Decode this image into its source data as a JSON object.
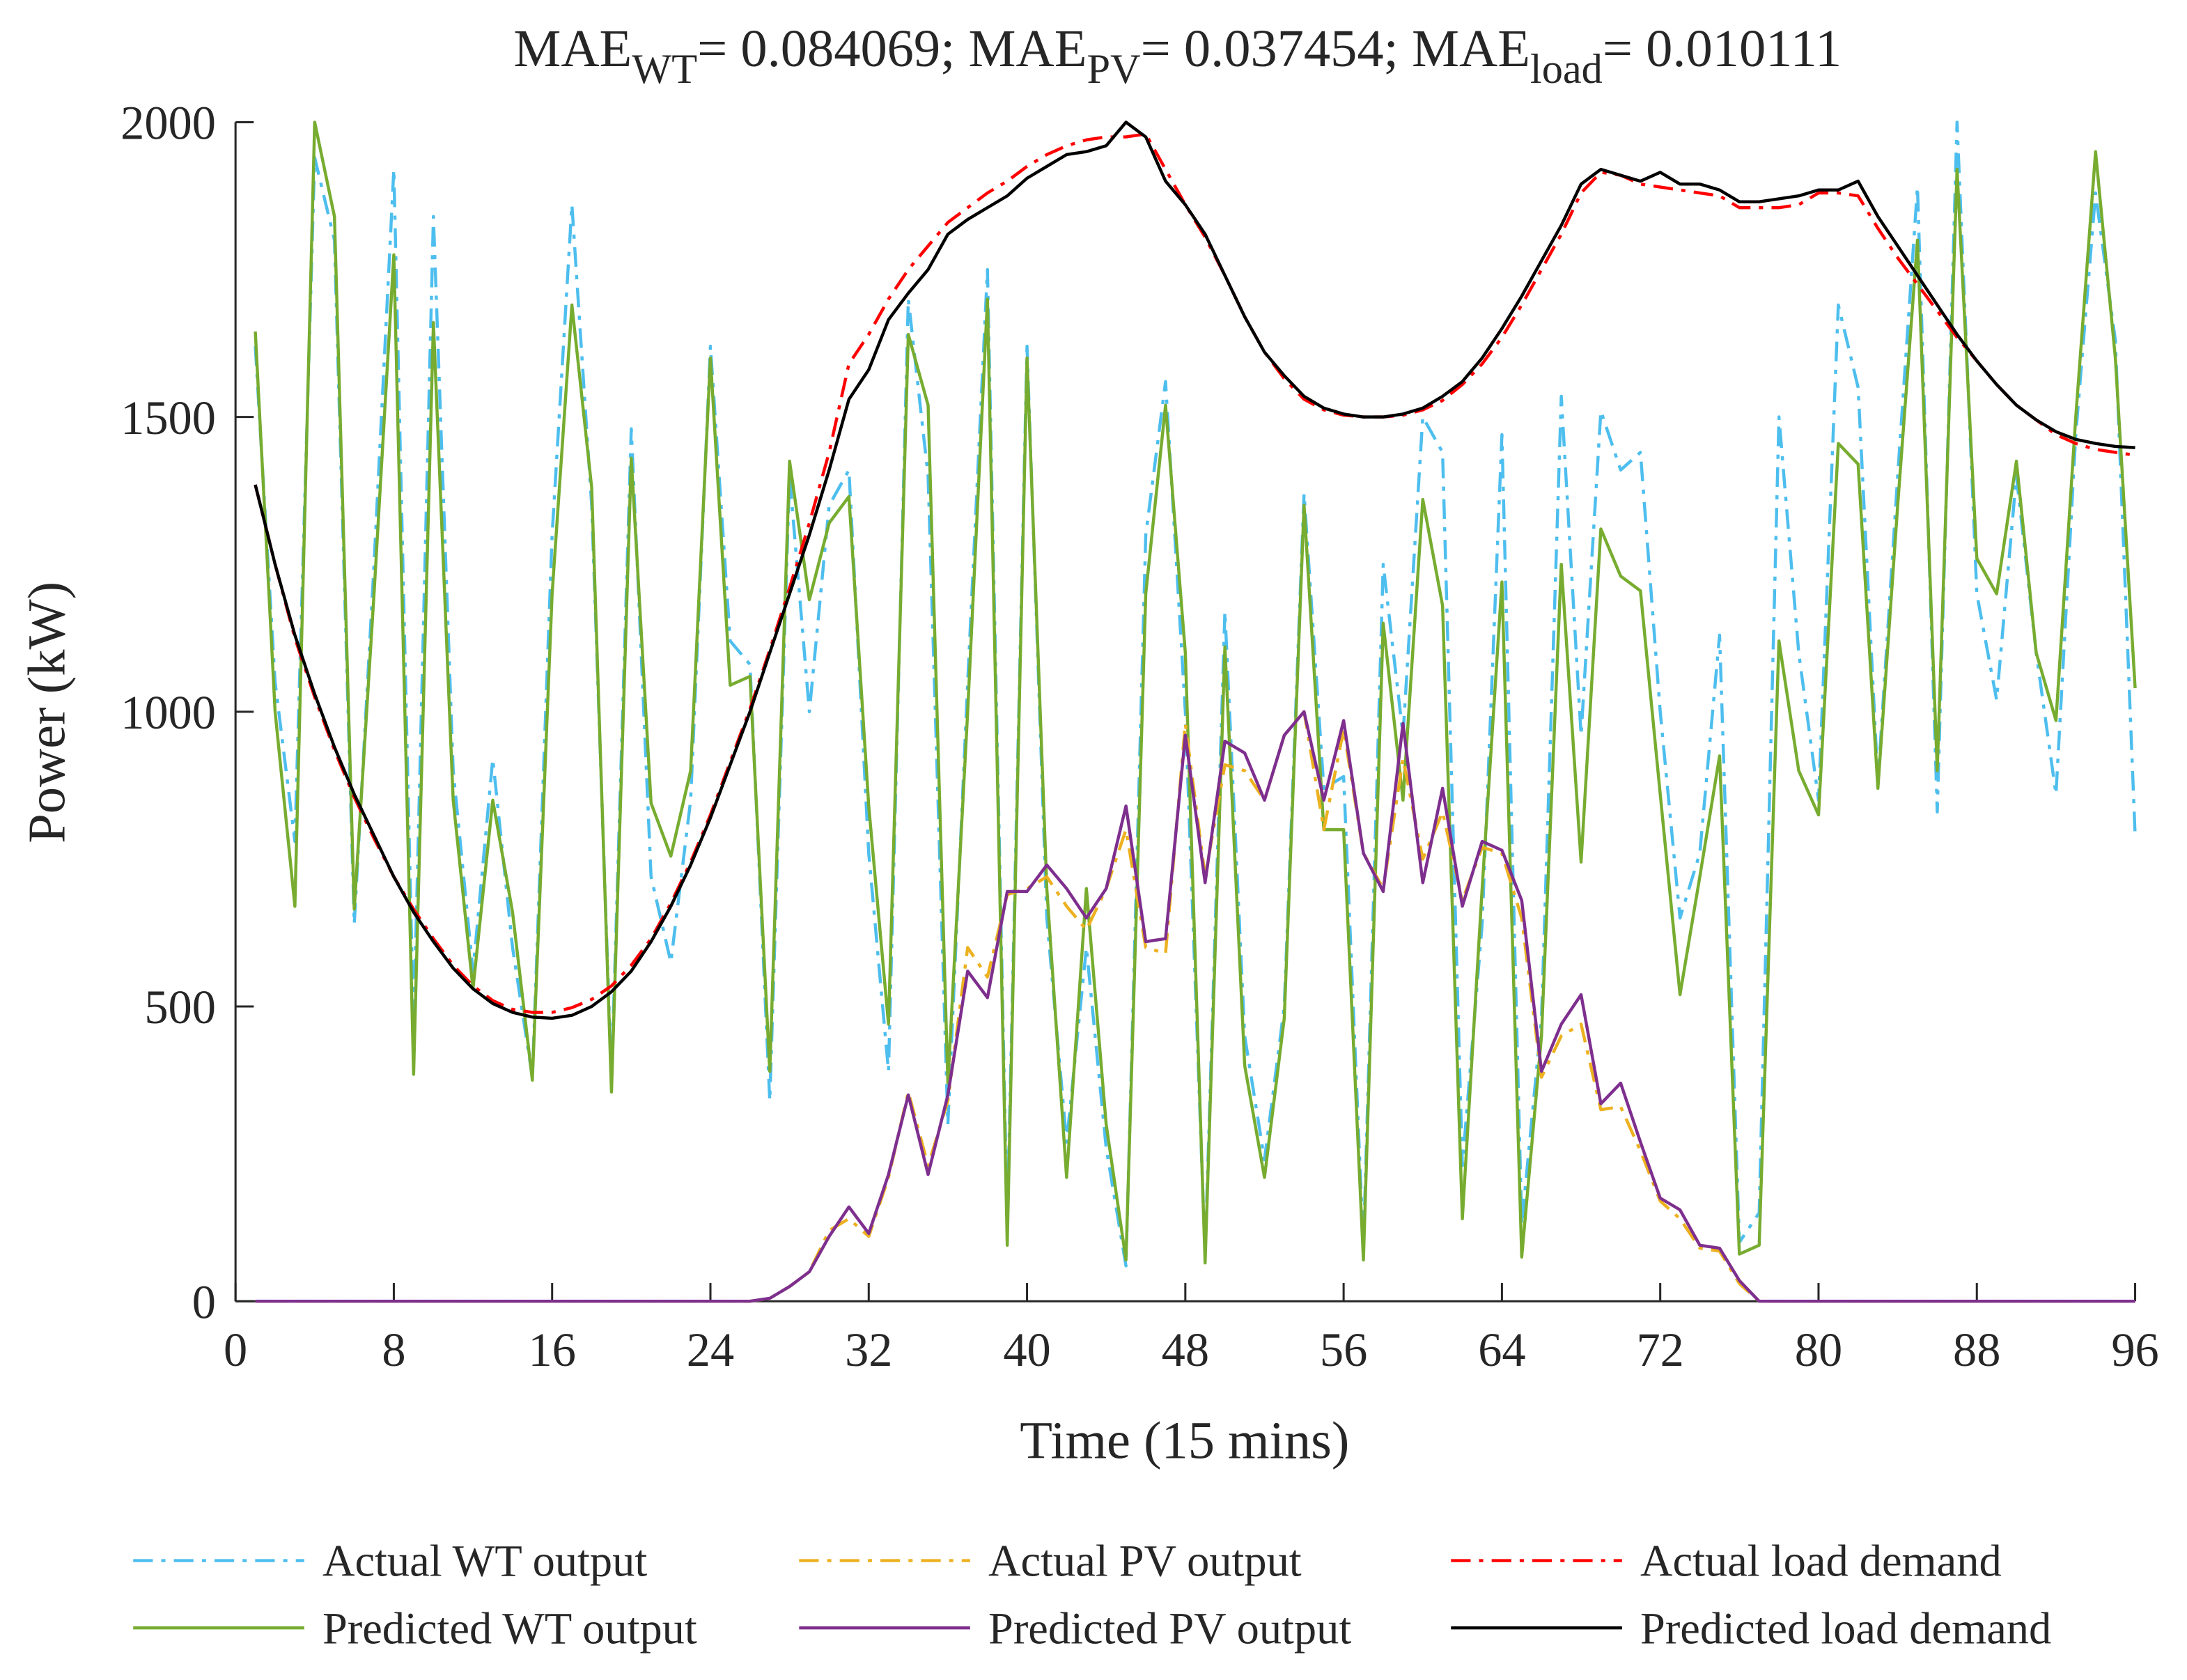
{
  "chart_data": {
    "type": "line",
    "title": [
      {
        "text": "MAE"
      },
      {
        "text": "WT",
        "sub": true
      },
      {
        "text": "= 0.084069; MAE"
      },
      {
        "text": "PV",
        "sub": true
      },
      {
        "text": "= 0.037454; MAE"
      },
      {
        "text": "load",
        "sub": true
      },
      {
        "text": "= 0.010111"
      }
    ],
    "x_label": "Time (15 mins)",
    "y_label": "Power (kW)",
    "xlim": [
      0,
      96
    ],
    "xticks": [
      0,
      8,
      16,
      24,
      32,
      40,
      48,
      56,
      64,
      72,
      80,
      88,
      96
    ],
    "ylim": [
      0,
      2000
    ],
    "yticks": [
      0,
      500,
      1000,
      1500,
      2000
    ],
    "grid": false,
    "legend": "bottom",
    "x": [
      1,
      2,
      3,
      4,
      5,
      6,
      7,
      8,
      9,
      10,
      11,
      12,
      13,
      14,
      15,
      16,
      17,
      18,
      19,
      20,
      21,
      22,
      23,
      24,
      25,
      26,
      27,
      28,
      29,
      30,
      31,
      32,
      33,
      34,
      35,
      36,
      37,
      38,
      39,
      40,
      41,
      42,
      43,
      44,
      45,
      46,
      47,
      48,
      49,
      50,
      51,
      52,
      53,
      54,
      55,
      56,
      57,
      58,
      59,
      60,
      61,
      62,
      63,
      64,
      65,
      66,
      67,
      68,
      69,
      70,
      71,
      72,
      73,
      74,
      75,
      76,
      77,
      78,
      79,
      80,
      81,
      82,
      83,
      84,
      85,
      86,
      87,
      88,
      89,
      90,
      91,
      92,
      93,
      94,
      95,
      96
    ],
    "series": [
      {
        "name": "Actual WT output",
        "color": "#4dbeee",
        "style": "dash-dot",
        "values": [
          1620,
          1050,
          780,
          1940,
          1800,
          640,
          1250,
          1920,
          460,
          1840,
          900,
          560,
          920,
          600,
          380,
          1300,
          1860,
          1350,
          380,
          1480,
          720,
          575,
          850,
          1620,
          1120,
          1080,
          340,
          1400,
          1000,
          1350,
          1410,
          760,
          390,
          1700,
          1400,
          300,
          1050,
          1750,
          130,
          1620,
          650,
          270,
          600,
          260,
          60,
          1300,
          1560,
          1000,
          80,
          1170,
          450,
          240,
          500,
          1370,
          870,
          890,
          90,
          1250,
          960,
          1500,
          1440,
          230,
          640,
          1470,
          130,
          480,
          1535,
          960,
          1510,
          1410,
          1440,
          1000,
          650,
          760,
          1130,
          100,
          150,
          1500,
          1100,
          850,
          1690,
          1550,
          880,
          1400,
          1890,
          830,
          2000,
          1200,
          1020,
          1400,
          1100,
          860,
          1470,
          1880,
          1630,
          790
        ]
      },
      {
        "name": "Predicted WT output",
        "color": "#77ac30",
        "style": "solid",
        "values": [
          1645,
          1000,
          670,
          2000,
          1840,
          665,
          1200,
          1775,
          385,
          1660,
          850,
          530,
          850,
          660,
          375,
          1200,
          1690,
          1380,
          355,
          1430,
          845,
          755,
          900,
          1600,
          1045,
          1060,
          390,
          1425,
          1190,
          1320,
          1365,
          840,
          470,
          1640,
          1520,
          370,
          1000,
          1700,
          95,
          1600,
          700,
          210,
          700,
          300,
          70,
          1200,
          1520,
          1100,
          65,
          1110,
          400,
          210,
          480,
          1350,
          800,
          800,
          70,
          1150,
          850,
          1360,
          1180,
          140,
          700,
          1220,
          75,
          450,
          1250,
          745,
          1310,
          1230,
          1205,
          860,
          520,
          720,
          925,
          80,
          95,
          1120,
          900,
          825,
          1455,
          1420,
          870,
          1350,
          1800,
          900,
          1920,
          1260,
          1200,
          1425,
          1100,
          985,
          1500,
          1950,
          1600,
          1040
        ]
      },
      {
        "name": "Actual PV output",
        "color": "#edb120",
        "style": "dash-dot",
        "values": [
          0,
          0,
          0,
          0,
          0,
          0,
          0,
          0,
          0,
          0,
          0,
          0,
          0,
          0,
          0,
          0,
          0,
          0,
          0,
          0,
          0,
          0,
          0,
          0,
          0,
          0,
          5,
          25,
          50,
          120,
          140,
          110,
          210,
          355,
          230,
          340,
          600,
          550,
          690,
          700,
          720,
          670,
          630,
          700,
          800,
          600,
          590,
          980,
          720,
          910,
          900,
          850,
          960,
          1000,
          800,
          970,
          760,
          700,
          920,
          750,
          830,
          680,
          770,
          760,
          650,
          380,
          450,
          470,
          325,
          330,
          255,
          170,
          140,
          90,
          85,
          30,
          0,
          0,
          0,
          0,
          0,
          0,
          0,
          0,
          0,
          0,
          0,
          0,
          0,
          0,
          0,
          0,
          0,
          0,
          0,
          0
        ]
      },
      {
        "name": "Predicted PV output",
        "color": "#7e2f8e",
        "style": "solid",
        "values": [
          0,
          0,
          0,
          0,
          0,
          0,
          0,
          0,
          0,
          0,
          0,
          0,
          0,
          0,
          0,
          0,
          0,
          0,
          0,
          0,
          0,
          0,
          0,
          0,
          0,
          0,
          5,
          25,
          50,
          110,
          160,
          115,
          215,
          350,
          215,
          350,
          560,
          515,
          695,
          695,
          740,
          700,
          650,
          700,
          840,
          610,
          615,
          960,
          710,
          950,
          930,
          850,
          960,
          1000,
          850,
          985,
          760,
          695,
          980,
          710,
          870,
          670,
          780,
          765,
          680,
          390,
          470,
          520,
          335,
          370,
          270,
          175,
          155,
          95,
          90,
          35,
          0,
          0,
          0,
          0,
          0,
          0,
          0,
          0,
          0,
          0,
          0,
          0,
          0,
          0,
          0,
          0,
          0,
          0,
          0,
          0
        ]
      },
      {
        "name": "Actual load demand",
        "color": "#ff0000",
        "style": "dash-dot",
        "values": [
          1385,
          1250,
          1125,
          1025,
          935,
          855,
          785,
          720,
          665,
          615,
          570,
          535,
          510,
          495,
          490,
          490,
          498,
          512,
          535,
          570,
          615,
          675,
          745,
          825,
          915,
          1005,
          1105,
          1210,
          1320,
          1440,
          1590,
          1640,
          1700,
          1750,
          1790,
          1830,
          1855,
          1880,
          1900,
          1925,
          1945,
          1960,
          1970,
          1975,
          1975,
          1980,
          1920,
          1860,
          1805,
          1740,
          1670,
          1610,
          1565,
          1530,
          1512,
          1503,
          1500,
          1500,
          1503,
          1512,
          1528,
          1555,
          1590,
          1635,
          1690,
          1750,
          1810,
          1880,
          1915,
          1910,
          1895,
          1890,
          1885,
          1880,
          1875,
          1855,
          1855,
          1855,
          1860,
          1880,
          1880,
          1875,
          1820,
          1770,
          1725,
          1680,
          1635,
          1595,
          1555,
          1520,
          1495,
          1470,
          1455,
          1445,
          1440,
          1435
        ]
      },
      {
        "name": "Predicted load demand",
        "color": "#000000",
        "style": "solid",
        "values": [
          1385,
          1250,
          1130,
          1030,
          940,
          860,
          790,
          720,
          660,
          610,
          565,
          530,
          505,
          490,
          482,
          480,
          485,
          500,
          525,
          560,
          610,
          670,
          740,
          820,
          910,
          1000,
          1100,
          1200,
          1300,
          1410,
          1530,
          1580,
          1665,
          1710,
          1750,
          1810,
          1835,
          1855,
          1875,
          1905,
          1925,
          1945,
          1950,
          1960,
          2000,
          1975,
          1900,
          1860,
          1810,
          1740,
          1670,
          1610,
          1570,
          1535,
          1515,
          1505,
          1500,
          1500,
          1505,
          1515,
          1535,
          1560,
          1600,
          1650,
          1705,
          1765,
          1825,
          1895,
          1920,
          1910,
          1900,
          1915,
          1895,
          1895,
          1885,
          1865,
          1865,
          1870,
          1875,
          1885,
          1885,
          1900,
          1840,
          1790,
          1740,
          1690,
          1640,
          1595,
          1555,
          1520,
          1495,
          1475,
          1462,
          1455,
          1450,
          1448
        ]
      }
    ]
  }
}
